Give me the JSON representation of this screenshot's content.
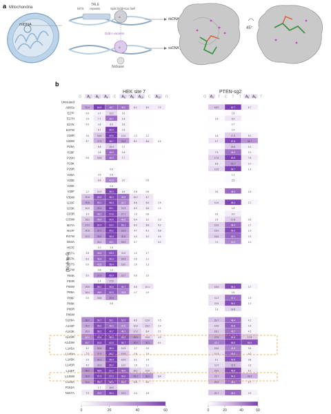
{
  "panel_a": {
    "label": "a",
    "organelle": "Mitochondria",
    "mtdna": "mtDNA",
    "tale": "TALE",
    "mts": "MTS",
    "repeats": "repeats",
    "split": "Split DddAtox half",
    "ds_pref": "dsDNA preference",
    "ss_pref": "ssDNA preference",
    "toxin_variants": "DddA variants",
    "nickase": "Nickase",
    "rotation": "45°"
  },
  "panel_b": {
    "label": "b",
    "heatmap1_title": "HEK site 7",
    "heatmap2_title": "PTEN-sg2",
    "ylabel": "(%) A-to-G",
    "seq1": [
      "G",
      "A",
      "A",
      "A",
      "C",
      "A",
      "A",
      "A",
      "C",
      "A",
      "G"
    ],
    "seq1_sub": [
      "",
      "1",
      "2",
      "4",
      "",
      "6",
      "8",
      "10",
      "",
      "12",
      ""
    ],
    "seq2": [
      "G",
      "A",
      "T",
      "C",
      "T",
      "T",
      "A",
      "A",
      "T"
    ],
    "seq2_sub": [
      "",
      "1",
      "",
      "",
      "",
      "",
      "5",
      "6",
      ""
    ],
    "colorbar_ticks": [
      "0",
      "20",
      "40",
      "60"
    ]
  },
  "chart_data": [
    {
      "type": "heatmap",
      "title": "HEK site 7",
      "rows": [
        "Untreated",
        "A88Ss",
        "E27F",
        "E27H",
        "E27K",
        "E27W",
        "V28R",
        "V28W",
        "P29A",
        "P29F",
        "P29H",
        "P29K",
        "P29R",
        "V30A",
        "V30E",
        "V30K",
        "V30F",
        "V30W",
        "G33F",
        "G33K",
        "G33R",
        "G33W",
        "I64TA",
        "R47F",
        "R47W",
        "D53A",
        "H57E",
        "H57A",
        "H57K",
        "H57S",
        "H57W",
        "F84K",
        "F84R",
        "F84W",
        "P86A",
        "P86F",
        "P86K",
        "P86R",
        "P86W",
        "S109A",
        "A143F",
        "A143K",
        "A143R",
        "A143W",
        "L145A",
        "L145H",
        "L145K",
        "L145R",
        "L145T",
        "L145W",
        "C146A",
        "P152A",
        "N157A"
      ],
      "columns": [
        "A1",
        "A2",
        "A4",
        "A6",
        "A8",
        "A10",
        "A12"
      ],
      "values": [
        [
          0.1,
          0.1,
          0.1,
          0.1,
          0.1,
          0.1,
          0.1
        ],
        [
          31.4,
          64.5,
          48.7,
          46.0,
          8.2,
          8.0,
          7.2
        ],
        [
          0.6,
          3.7,
          13.2,
          2.6,
          0.2,
          0.2,
          0.1
        ],
        [
          1.5,
          7.7,
          46.7,
          5.4,
          0.2,
          0.4,
          0.1
        ],
        [
          0.6,
          3.6,
          8.0,
          3.8,
          0.1,
          0.3,
          0.0
        ],
        [
          0.4,
          5.7,
          65.9,
          3.3,
          0.1,
          0.1,
          0.0
        ],
        [
          1.6,
          18.8,
          65.8,
          10.6,
          1.2,
          1.2,
          0.1
        ],
        [
          3.7,
          27.9,
          58.7,
          35.5,
          8.1,
          8.6,
          0.5
        ],
        [
          0.2,
          5.8,
          15.4,
          0.7,
          0.0,
          0.0,
          0.1
        ],
        [
          0.4,
          2.8,
          48.0,
          3.4,
          0.2,
          0.2,
          0.4
        ],
        [
          0.8,
          15.8,
          48.0,
          7.7,
          0.2,
          0.4,
          0.1
        ],
        [
          0.1,
          0.1,
          0.4,
          0.1,
          0.0,
          0.0,
          0.1
        ],
        [
          0.1,
          0.2,
          0.6,
          0.1,
          0.0,
          0.0,
          0.1
        ],
        [
          0.2,
          0.5,
          2.6,
          0.2,
          0.1,
          0.1,
          0.1
        ],
        [
          0.1,
          6.6,
          41.0,
          3.0,
          0.3,
          0.5,
          0.1
        ],
        [
          0.1,
          0.4,
          0.6,
          0.0,
          0.0,
          0.0,
          0.1
        ],
        [
          1.2,
          10.2,
          58.3,
          4.6,
          0.8,
          0.8,
          0.1
        ],
        [
          20.6,
          53.2,
          58.3,
          46.5,
          10.2,
          8.7,
          0.1
        ],
        [
          30.8,
          50.1,
          58.4,
          40.7,
          8.6,
          8.6,
          2.5
        ],
        [
          10.5,
          35.4,
          59.1,
          21.9,
          6.0,
          6.8,
          1.1
        ],
        [
          3.3,
          46.7,
          57.8,
          27.1,
          1.3,
          0.8,
          0.0
        ],
        [
          18.2,
          45.4,
          60.5,
          40.6,
          5.4,
          3.2,
          2.3
        ],
        [
          27.0,
          57.4,
          63.0,
          50.1,
          8.0,
          8.8,
          5.2
        ],
        [
          20.8,
          37.7,
          65.2,
          32.9,
          4.7,
          4.3,
          5.8
        ],
        [
          22.3,
          35.0,
          58.4,
          30.6,
          4.0,
          5.2,
          4.6
        ],
        [
          0.1,
          24.2,
          45.1,
          26.0,
          0.7,
          0.4,
          5.2
        ],
        [
          0.3,
          1.0,
          1.5,
          0.1,
          0.1,
          0.1,
          0.1
        ],
        [
          2.8,
          46.5,
          53.3,
          11.6,
          1.2,
          1.7,
          0.1
        ],
        [
          6.9,
          48.4,
          56.3,
          24.5,
          2.6,
          2.1,
          0.1
        ],
        [
          0.9,
          43.5,
          58.4,
          18.0,
          1.0,
          1.3,
          0.1
        ],
        [
          0.3,
          0.8,
          1.3,
          0.4,
          0.1,
          0.1,
          0.1
        ],
        [
          5.0,
          37.5,
          65.9,
          23.7,
          0.8,
          1.0,
          0.1
        ],
        [
          0.2,
          1.4,
          17.5,
          0.4,
          0.1,
          0.1,
          0.1
        ],
        [
          19.9,
          58.1,
          56.8,
          50.7,
          5.5,
          10.1,
          0.1
        ],
        [
          16.4,
          48.5,
          52.3,
          40.5,
          1.7,
          1.0,
          0.1
        ],
        [
          0.5,
          15.8,
          35.8,
          0.4,
          0.2,
          0.2,
          0.1
        ],
        [
          0.1,
          0.3,
          0.8,
          0.1,
          0.1,
          0.1,
          0.1
        ],
        [
          0.1,
          0.1,
          0.4,
          0.0,
          0.0,
          0.1,
          0.1
        ],
        [
          0.1,
          0.1,
          0.4,
          0.1,
          0.1,
          0.1,
          0.1
        ],
        [
          38.7,
          54.7,
          56.1,
          52.2,
          8.0,
          12.6,
          0.5
        ],
        [
          30.9,
          55.0,
          48.3,
          40.6,
          10.8,
          15.2,
          2.4
        ],
        [
          25.3,
          58.2,
          60.7,
          46.7,
          17.2,
          8.4,
          2.1
        ],
        [
          40.1,
          63.6,
          58.4,
          53.2,
          35.8,
          13.6,
          4.9
        ],
        [
          48.7,
          64.5,
          62.5,
          56.7,
          38.9,
          36.1,
          6.1
        ],
        [
          3.2,
          30.8,
          58.4,
          11.9,
          1.7,
          2.0,
          0.1
        ],
        [
          7.0,
          32.3,
          58.7,
          19.9,
          2.6,
          1.9,
          0.1
        ],
        [
          2.5,
          34.1,
          58.4,
          14.5,
          3.1,
          1.5,
          0.1
        ],
        [
          4.2,
          24.3,
          59.2,
          12.0,
          1.6,
          2.1,
          0.1
        ],
        [
          38.1,
          58.8,
          62.7,
          49.9,
          15.1,
          10.6,
          0.1
        ],
        [
          36.9,
          57.9,
          57.3,
          54.6,
          35.3,
          36.0,
          8.4
        ],
        [
          34.4,
          58.2,
          58.4,
          50.2,
          8.5,
          6.0,
          0.4
        ],
        [
          0.2,
          1.7,
          16.5,
          0.1,
          0.1,
          0.1,
          0.1
        ],
        [
          7.9,
          49.2,
          58.4,
          22.2,
          2.4,
          1.8,
          0.1
        ]
      ],
      "colorbar": {
        "min": 0,
        "max": 60,
        "ticks": [
          0,
          20,
          40,
          60
        ]
      }
    },
    {
      "type": "heatmap",
      "title": "PTEN-sg2",
      "rows": [
        "Untreated",
        "A88Ss",
        "E27F",
        "E27H",
        "E27K",
        "E27W",
        "V28R",
        "V28W",
        "P29A",
        "P29F",
        "P29H",
        "P29K",
        "P29R",
        "V30A",
        "V30E",
        "V30K",
        "V30F",
        "V30W",
        "G33F",
        "G33K",
        "G33R",
        "G33W",
        "I64TA",
        "R47F",
        "R47W",
        "D53A",
        "H57E",
        "H57A",
        "H57K",
        "H57S",
        "H57W",
        "F84K",
        "F84R",
        "F84W",
        "P86A",
        "P86F",
        "P86K",
        "P86R",
        "P86W",
        "S109A",
        "A143F",
        "A143K",
        "A143R",
        "A143W",
        "L145A",
        "L145H",
        "L145K",
        "L145R",
        "L145T",
        "L145W",
        "C146A",
        "P152A",
        "N157A"
      ],
      "columns": [
        "A1",
        "A5",
        "A6"
      ],
      "values": [
        [
          0.1,
          0.1,
          0.1
        ],
        [
          18.9,
          62.7,
          6.7
        ],
        [
          0.4,
          1.8,
          0.4
        ],
        [
          1.8,
          8.4,
          0.2
        ],
        [
          0.4,
          0.7,
          0.1
        ],
        [
          0.3,
          1.9,
          0.1
        ],
        [
          1.8,
          17.5,
          5.0
        ],
        [
          9.7,
          57.8,
          36.7
        ],
        [
          0.2,
          18.8,
          5.1
        ],
        [
          7.9,
          45.4,
          2.1
        ],
        [
          17.8,
          63.5,
          7.8
        ],
        [
          8.5,
          33.7,
          3.7
        ],
        [
          13.8,
          58.7,
          1.4
        ],
        [
          0.2,
          1.1,
          0.1
        ],
        [
          0.4,
          2.5,
          0.1
        ],
        [
          0.1,
          0.1,
          0.1
        ],
        [
          3.6,
          48.4,
          1.5
        ],
        [
          0.1,
          0.1,
          0.1
        ],
        [
          10.6,
          58.4,
          2.7
        ],
        [
          0.2,
          1.8,
          0.1
        ],
        [
          0.6,
          6.3,
          0.2
        ],
        [
          2.9,
          17.8,
          0.9
        ],
        [
          15.6,
          48.4,
          2.7
        ],
        [
          15.0,
          56.3,
          1.9
        ],
        [
          16.6,
          49.1,
          2.3
        ],
        [
          7.0,
          40.3,
          1.0
        ],
        [
          0.1,
          0.1,
          0.1
        ],
        [
          0.1,
          0.1,
          0.1
        ],
        [
          0.1,
          0.1,
          0.1
        ],
        [
          0.1,
          0.1,
          0.1
        ],
        [
          0.1,
          0.1,
          0.1
        ],
        [
          0.1,
          0.1,
          0.1
        ],
        [
          0.1,
          0.1,
          0.1
        ],
        [
          15.6,
          56.3,
          3.7
        ],
        [
          0.2,
          1.6,
          0.1
        ],
        [
          11.2,
          47.1,
          1.5
        ],
        [
          11.6,
          55.2,
          1.2
        ],
        [
          1.8,
          14.8,
          0.2
        ],
        [
          0.1,
          0.1,
          0.1
        ],
        [
          20.7,
          48.4,
          4.2
        ],
        [
          14.8,
          50.8,
          4.4
        ],
        [
          18.1,
          45.7,
          4.2
        ],
        [
          27.8,
          54.8,
          17.8
        ],
        [
          43.1,
          58.8,
          54.5
        ],
        [
          15.6,
          41.6,
          3.5
        ],
        [
          11.3,
          48.4,
          4.0
        ],
        [
          9.1,
          53.5,
          3.8
        ],
        [
          11.9,
          22.9,
          3.3
        ],
        [
          22.0,
          56.8,
          6.2
        ],
        [
          23.7,
          54.3,
          28.4
        ],
        [
          25.9,
          48.4,
          5.7
        ],
        [
          0.1,
          0.1,
          0.1
        ],
        [
          20.7,
          48.4,
          4.9
        ]
      ],
      "colorbar": {
        "min": 0,
        "max": 60,
        "ticks": [
          0,
          20,
          40,
          60
        ]
      }
    }
  ]
}
